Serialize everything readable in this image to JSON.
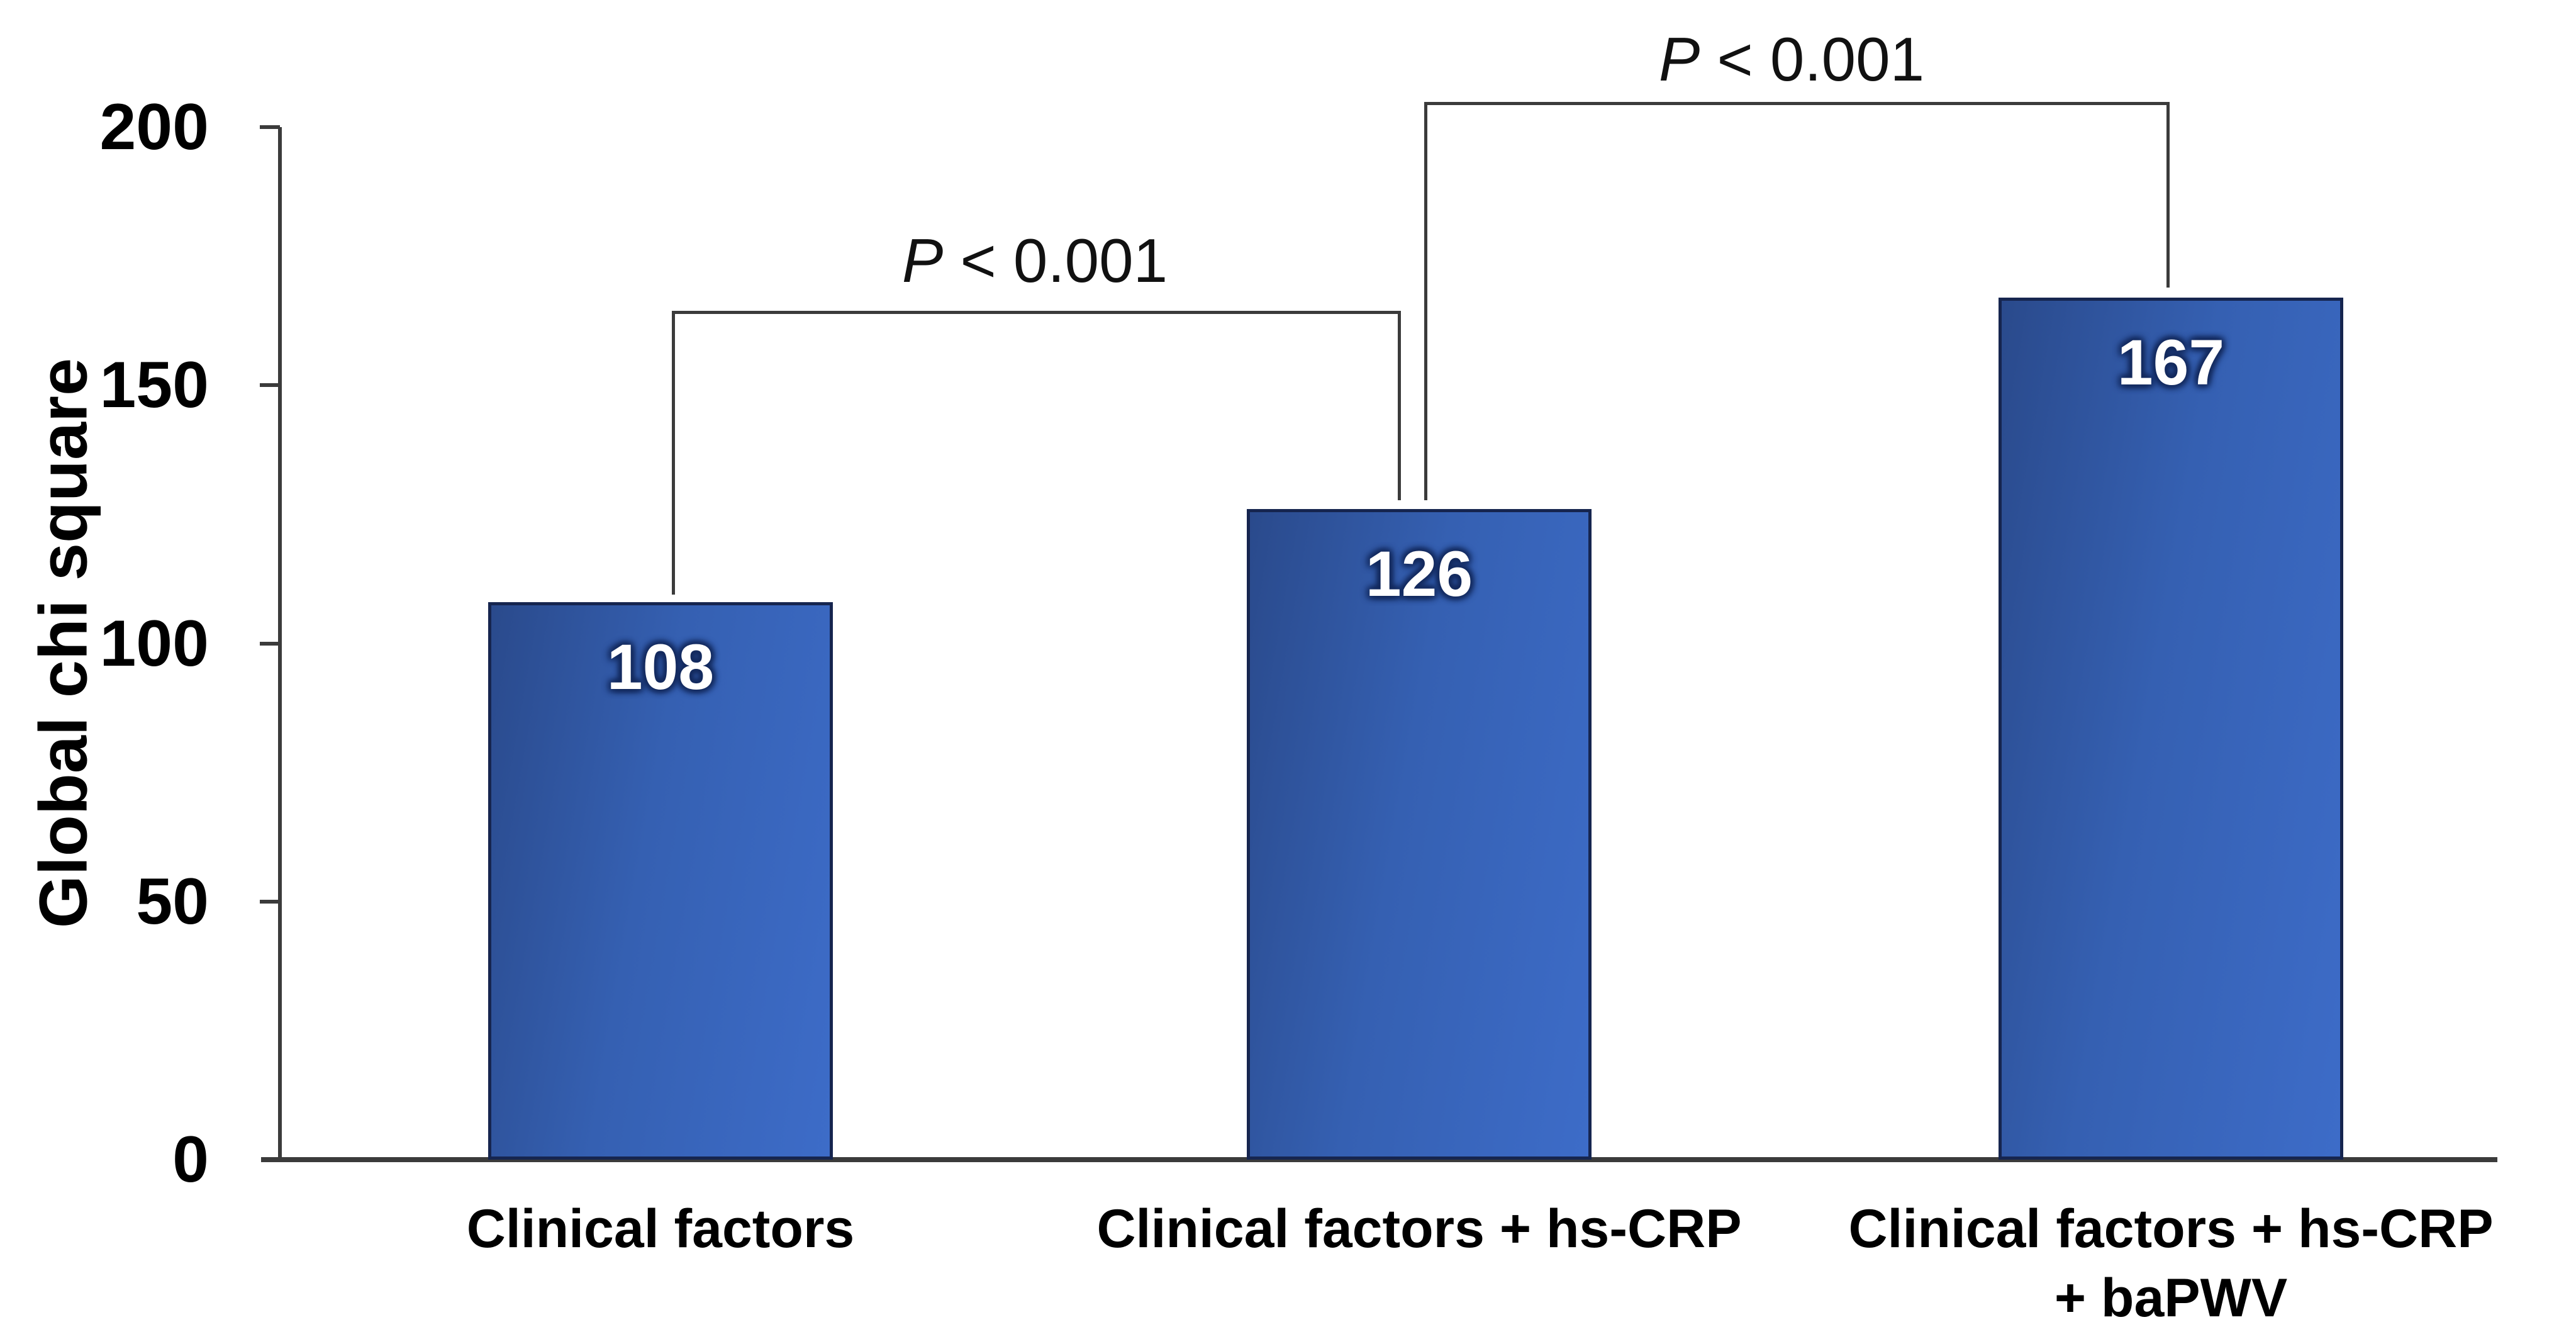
{
  "chart_data": {
    "type": "bar",
    "title": "",
    "xlabel": "",
    "ylabel": "Global chi square",
    "ylim": [
      0,
      200
    ],
    "yticks": [
      0,
      50,
      100,
      150,
      200
    ],
    "categories": [
      "Clinical factors",
      "Clinical factors + hs-CRP",
      "Clinical factors + hs-CRP\n+ baPWV"
    ],
    "values": [
      108,
      126,
      167
    ],
    "bar_value_labels": [
      "108",
      "126",
      "167"
    ],
    "grid": "off",
    "legend": "none",
    "annotations": [
      {
        "label": "P < 0.001",
        "p_symbol": "P",
        "rest": " < 0.001",
        "between": [
          "Clinical factors",
          "Clinical factors + hs-CRP"
        ]
      },
      {
        "label": "P < 0.001",
        "p_symbol": "P",
        "rest": " < 0.001",
        "between": [
          "Clinical factors + hs-CRP",
          "Clinical factors + hs-CRP + baPWV"
        ]
      }
    ],
    "colors": {
      "bar_gradient_start": "#2a4a8c",
      "bar_gradient_mid": "#3560b2",
      "bar_gradient_end": "#3d6cc8",
      "bar_border": "#16254f",
      "axis_line": "#3b3b3b",
      "value_text": "#ffffff",
      "label_text": "#000000"
    }
  }
}
